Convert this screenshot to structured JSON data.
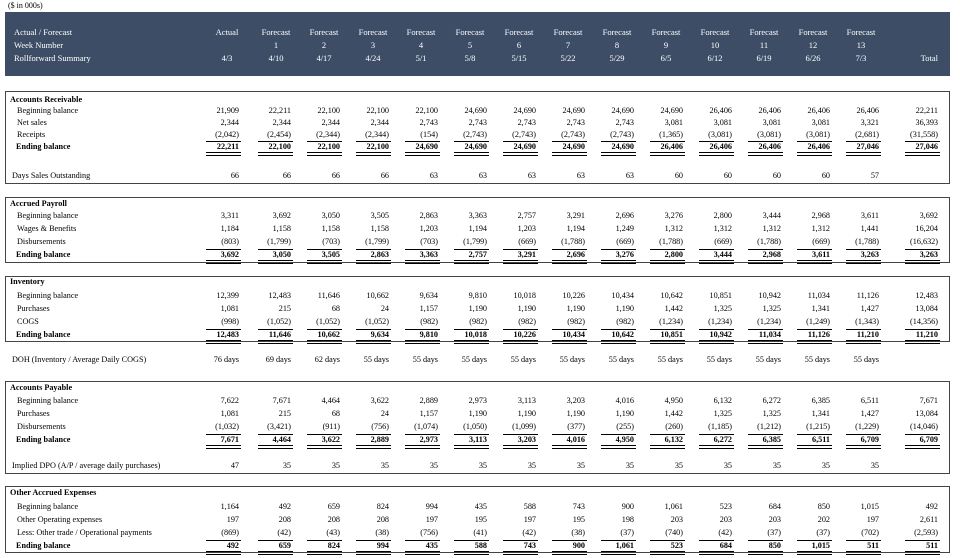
{
  "units": "($ in 000s)",
  "header": {
    "row1_label": "Actual / Forecast",
    "row2_label": "Week Number",
    "row3_label": "Rollforward Summary",
    "columns": [
      {
        "type": "Actual",
        "week": "",
        "date": "4/3"
      },
      {
        "type": "Forecast",
        "week": "1",
        "date": "4/10"
      },
      {
        "type": "Forecast",
        "week": "2",
        "date": "4/17"
      },
      {
        "type": "Forecast",
        "week": "3",
        "date": "4/24"
      },
      {
        "type": "Forecast",
        "week": "4",
        "date": "5/1"
      },
      {
        "type": "Forecast",
        "week": "5",
        "date": "5/8"
      },
      {
        "type": "Forecast",
        "week": "6",
        "date": "5/15"
      },
      {
        "type": "Forecast",
        "week": "7",
        "date": "5/22"
      },
      {
        "type": "Forecast",
        "week": "8",
        "date": "5/29"
      },
      {
        "type": "Forecast",
        "week": "9",
        "date": "6/5"
      },
      {
        "type": "Forecast",
        "week": "10",
        "date": "6/12"
      },
      {
        "type": "Forecast",
        "week": "11",
        "date": "6/19"
      },
      {
        "type": "Forecast",
        "week": "12",
        "date": "6/26"
      },
      {
        "type": "Forecast",
        "week": "13",
        "date": "7/3"
      }
    ],
    "total_label": "Total"
  },
  "sections": [
    {
      "title": "Accounts Receivable",
      "rows": [
        {
          "label": "Beginning balance",
          "values": [
            "21,909",
            "22,211",
            "22,100",
            "22,100",
            "22,100",
            "24,690",
            "24,690",
            "24,690",
            "24,690",
            "24,690",
            "26,406",
            "26,406",
            "26,406",
            "26,406",
            "22,211"
          ]
        },
        {
          "label": "Net sales",
          "values": [
            "2,344",
            "2,344",
            "2,344",
            "2,344",
            "2,743",
            "2,743",
            "2,743",
            "2,743",
            "2,743",
            "3,081",
            "3,081",
            "3,081",
            "3,081",
            "3,321",
            "36,393"
          ]
        },
        {
          "label": "Receipts",
          "values": [
            "(2,042)",
            "(2,454)",
            "(2,344)",
            "(2,344)",
            "(154)",
            "(2,743)",
            "(2,743)",
            "(2,743)",
            "(2,743)",
            "(1,365)",
            "(3,081)",
            "(3,081)",
            "(3,081)",
            "(2,681)",
            "(31,558)"
          ]
        },
        {
          "label": "Ending balance",
          "bold": true,
          "values": [
            "22,211",
            "22,100",
            "22,100",
            "22,100",
            "24,690",
            "24,690",
            "24,690",
            "24,690",
            "24,690",
            "26,406",
            "26,406",
            "26,406",
            "26,406",
            "27,046",
            "27,046"
          ]
        }
      ],
      "metric": {
        "label": "Days Sales Outstanding",
        "values": [
          "66",
          "66",
          "66",
          "66",
          "63",
          "63",
          "63",
          "63",
          "63",
          "60",
          "60",
          "60",
          "60",
          "57",
          ""
        ]
      }
    },
    {
      "title": "Accrued Payroll",
      "rows": [
        {
          "label": "Beginning balance",
          "values": [
            "3,311",
            "3,692",
            "3,050",
            "3,505",
            "2,863",
            "3,363",
            "2,757",
            "3,291",
            "2,696",
            "3,276",
            "2,800",
            "3,444",
            "2,968",
            "3,611",
            "3,692"
          ]
        },
        {
          "label": "Wages & Benefits",
          "values": [
            "1,184",
            "1,158",
            "1,158",
            "1,158",
            "1,203",
            "1,194",
            "1,203",
            "1,194",
            "1,249",
            "1,312",
            "1,312",
            "1,312",
            "1,312",
            "1,441",
            "16,204"
          ]
        },
        {
          "label": "Disbursements",
          "values": [
            "(803)",
            "(1,799)",
            "(703)",
            "(1,799)",
            "(703)",
            "(1,799)",
            "(669)",
            "(1,788)",
            "(669)",
            "(1,788)",
            "(669)",
            "(1,788)",
            "(669)",
            "(1,788)",
            "(16,632)"
          ]
        },
        {
          "label": "Ending balance",
          "bold": true,
          "values": [
            "3,692",
            "3,050",
            "3,505",
            "2,863",
            "3,363",
            "2,757",
            "3,291",
            "2,696",
            "3,276",
            "2,800",
            "3,444",
            "2,968",
            "3,611",
            "3,263",
            "3,263"
          ]
        }
      ]
    },
    {
      "title": "Inventory",
      "rows": [
        {
          "label": "Beginning balance",
          "values": [
            "12,399",
            "12,483",
            "11,646",
            "10,662",
            "9,634",
            "9,810",
            "10,018",
            "10,226",
            "10,434",
            "10,642",
            "10,851",
            "10,942",
            "11,034",
            "11,126",
            "12,483"
          ]
        },
        {
          "label": "Purchases",
          "values": [
            "1,081",
            "215",
            "68",
            "24",
            "1,157",
            "1,190",
            "1,190",
            "1,190",
            "1,190",
            "1,442",
            "1,325",
            "1,325",
            "1,341",
            "1,427",
            "13,084"
          ]
        },
        {
          "label": "COGS",
          "values": [
            "(998)",
            "(1,052)",
            "(1,052)",
            "(1,052)",
            "(982)",
            "(982)",
            "(982)",
            "(982)",
            "(982)",
            "(1,234)",
            "(1,234)",
            "(1,234)",
            "(1,249)",
            "(1,343)",
            "(14,356)"
          ]
        },
        {
          "label": "Ending balance",
          "bold": true,
          "values": [
            "12,483",
            "11,646",
            "10,662",
            "9,634",
            "9,810",
            "10,018",
            "10,226",
            "10,434",
            "10,642",
            "10,851",
            "10,942",
            "11,034",
            "11,126",
            "11,210",
            "11,210"
          ]
        }
      ],
      "metric": {
        "label": "DOH (Inventory / Average Daily COGS)",
        "values": [
          "76 days",
          "69 days",
          "62 days",
          "55 days",
          "55 days",
          "55 days",
          "55 days",
          "55 days",
          "55 days",
          "55 days",
          "55 days",
          "55 days",
          "55 days",
          "55 days",
          ""
        ]
      }
    },
    {
      "title": "Accounts Payable",
      "rows": [
        {
          "label": "Beginning balance",
          "values": [
            "7,622",
            "7,671",
            "4,464",
            "3,622",
            "2,889",
            "2,973",
            "3,113",
            "3,203",
            "4,016",
            "4,950",
            "6,132",
            "6,272",
            "6,385",
            "6,511",
            "7,671"
          ]
        },
        {
          "label": "Purchases",
          "values": [
            "1,081",
            "215",
            "68",
            "24",
            "1,157",
            "1,190",
            "1,190",
            "1,190",
            "1,190",
            "1,442",
            "1,325",
            "1,325",
            "1,341",
            "1,427",
            "13,084"
          ]
        },
        {
          "label": "Disbursements",
          "values": [
            "(1,032)",
            "(3,421)",
            "(911)",
            "(756)",
            "(1,074)",
            "(1,050)",
            "(1,099)",
            "(377)",
            "(255)",
            "(260)",
            "(1,185)",
            "(1,212)",
            "(1,215)",
            "(1,229)",
            "(14,046)"
          ]
        },
        {
          "label": "Ending balance",
          "bold": true,
          "values": [
            "7,671",
            "4,464",
            "3,622",
            "2,889",
            "2,973",
            "3,113",
            "3,203",
            "4,016",
            "4,950",
            "6,132",
            "6,272",
            "6,385",
            "6,511",
            "6,709",
            "6,709"
          ]
        }
      ],
      "metric": {
        "label": "Implied DPO (A/P / average daily purchases)",
        "values": [
          "47",
          "35",
          "35",
          "35",
          "35",
          "35",
          "35",
          "35",
          "35",
          "35",
          "35",
          "35",
          "35",
          "35",
          ""
        ]
      }
    },
    {
      "title": "Other Accrued Expenses",
      "rows": [
        {
          "label": "Beginning balance",
          "values": [
            "1,164",
            "492",
            "659",
            "824",
            "994",
            "435",
            "588",
            "743",
            "900",
            "1,061",
            "523",
            "684",
            "850",
            "1,015",
            "492"
          ]
        },
        {
          "label": "Other Operating expenses",
          "values": [
            "197",
            "208",
            "208",
            "208",
            "197",
            "195",
            "197",
            "195",
            "198",
            "203",
            "203",
            "203",
            "202",
            "197",
            "2,611"
          ]
        },
        {
          "label": "Less: Other trade / Operational payments",
          "values": [
            "(869)",
            "(42)",
            "(43)",
            "(38)",
            "(756)",
            "(41)",
            "(42)",
            "(38)",
            "(37)",
            "(740)",
            "(42)",
            "(37)",
            "(37)",
            "(702)",
            "(2,593)"
          ]
        },
        {
          "label": "Ending balance",
          "bold": true,
          "values": [
            "492",
            "659",
            "824",
            "994",
            "435",
            "588",
            "743",
            "900",
            "1,061",
            "523",
            "684",
            "850",
            "1,015",
            "511",
            "511"
          ]
        }
      ]
    }
  ]
}
